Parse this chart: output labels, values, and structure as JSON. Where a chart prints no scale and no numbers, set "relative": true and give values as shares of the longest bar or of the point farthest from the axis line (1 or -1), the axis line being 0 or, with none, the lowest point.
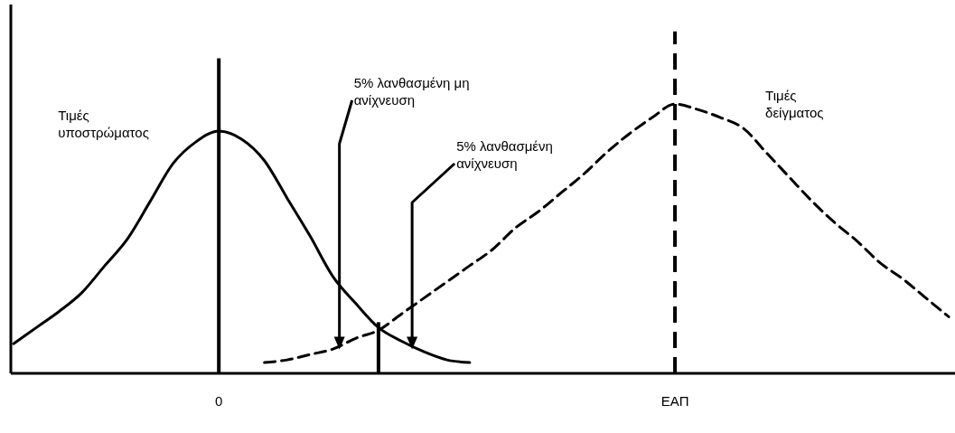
{
  "chart_data": {
    "type": "line",
    "relative": true,
    "tick_labels": "x",
    "marker": "none",
    "categories": [
      null,
      null,
      null,
      null,
      null,
      null,
      null,
      null,
      null,
      "0",
      null,
      null,
      null,
      null,
      null,
      null,
      null,
      null,
      null,
      null,
      null,
      null,
      null,
      null,
      null,
      null,
      null,
      null,
      null,
      "ΕΑΠ",
      null,
      null,
      null,
      null,
      null,
      null,
      null,
      null,
      null,
      null,
      null,
      null
    ],
    "series": [
      {
        "name": "Τιμές υποστρώματος",
        "color": "#000000",
        "line_style": "solid",
        "values": [
          0.11,
          0.17,
          0.23,
          0.3,
          0.4,
          0.5,
          0.64,
          0.78,
          0.86,
          0.9,
          0.87,
          0.79,
          0.65,
          0.51,
          0.36,
          0.26,
          0.17,
          0.12,
          0.08,
          0.05,
          0.04,
          null,
          null,
          null,
          null,
          null,
          null,
          null,
          null,
          null,
          null,
          null,
          null,
          null,
          null,
          null,
          null,
          null,
          null,
          null,
          null,
          null
        ]
      },
      {
        "name": "Τιμές δείγματος",
        "color": "#000000",
        "line_style": "dashed",
        "values": [
          null,
          null,
          null,
          null,
          null,
          null,
          null,
          null,
          null,
          null,
          null,
          0.04,
          0.05,
          0.07,
          0.09,
          0.13,
          0.16,
          0.22,
          0.28,
          0.34,
          0.4,
          0.46,
          0.54,
          0.6,
          0.67,
          0.74,
          0.82,
          0.89,
          0.95,
          1,
          0.98,
          0.95,
          0.91,
          0.82,
          0.73,
          0.64,
          0.56,
          0.49,
          0.41,
          0.35,
          0.28,
          0.21
        ]
      },
      {
        "type": "bar",
        "color": "#000000",
        "values": [
          null,
          null,
          null,
          null,
          null,
          null,
          null,
          null,
          null,
          null,
          null,
          null,
          null,
          null,
          null,
          null,
          0.19,
          null,
          null,
          null,
          null,
          null,
          null,
          null,
          null,
          null,
          null,
          null,
          null,
          null,
          null,
          null,
          null,
          null,
          null,
          null,
          null,
          null,
          null,
          null,
          null,
          null
        ]
      }
    ],
    "ref_lines": [
      {
        "axis": "x",
        "value": "0",
        "line_style": "solid"
      },
      {
        "axis": "x",
        "value": "ΕΑΠ",
        "line_style": "dashed"
      }
    ],
    "annotations": [
      "5% λανθασμένη μη ανίχνευση",
      "5% λανθασμένη ανίχνευση"
    ]
  }
}
